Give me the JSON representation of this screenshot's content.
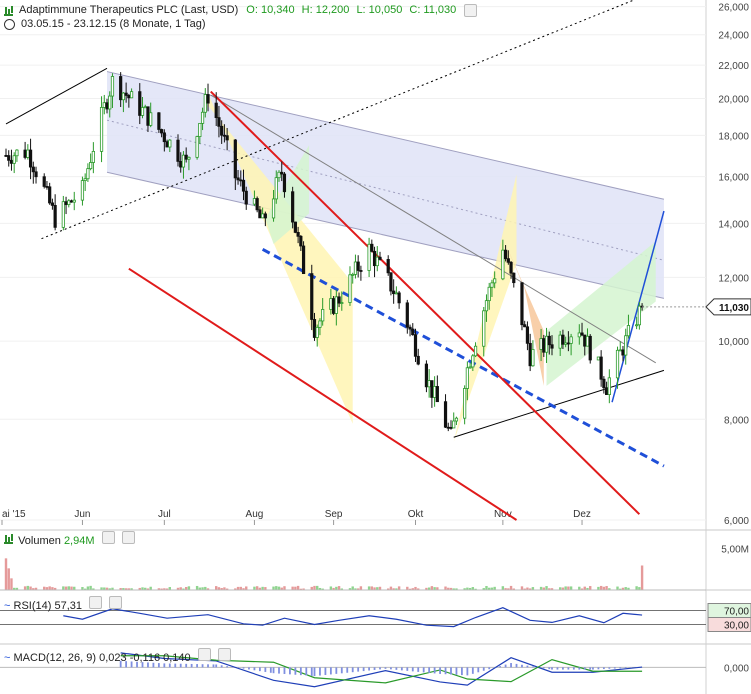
{
  "header": {
    "instrument": "Adaptimmune Therapeutics PLC (Last, USD)",
    "open": "O: 10,340",
    "high": "H: 12,200",
    "low": "L: 10,050",
    "close": "C: 11,030",
    "period": "03.05.15 - 23.12.15 (8 Monate, 1 Tag)"
  },
  "colors": {
    "up": "#2a9a2a",
    "down": "#111111",
    "trend_red": "#e01b1b",
    "trend_blue": "#1f4fd8",
    "channel_fill": "#dfe3f7",
    "yellow_fill": "#fff4b3",
    "green_fill": "#d5f5d0",
    "orange_fill": "#f7c79a"
  },
  "chart_data": {
    "type": "candlestick",
    "x_labels": [
      "ai '15",
      "Jun",
      "Jul",
      "Aug",
      "Sep",
      "Okt",
      "Nov",
      "Dez"
    ],
    "y_ticks": [
      "6,000",
      "8,000",
      "10,000",
      "12,000",
      "14,000",
      "16,000",
      "18,000",
      "20,000",
      "22,000",
      "24,000",
      "26,000"
    ],
    "y_tick_values": [
      6,
      8,
      10,
      12,
      14,
      16,
      18,
      20,
      22,
      24,
      26
    ],
    "ylim": [
      6,
      26.5
    ],
    "last_price_label": "11,030",
    "last_price": 11.03,
    "scale": "log",
    "path_keypoints": [
      {
        "d": "2015-05-04",
        "v": 17.0
      },
      {
        "d": "2015-05-12",
        "v": 17.2
      },
      {
        "d": "2015-05-22",
        "v": 14.2
      },
      {
        "d": "2015-06-01",
        "v": 15.4
      },
      {
        "d": "2015-06-12",
        "v": 21.0
      },
      {
        "d": "2015-06-25",
        "v": 19.0
      },
      {
        "d": "2015-07-09",
        "v": 16.6
      },
      {
        "d": "2015-07-17",
        "v": 20.2
      },
      {
        "d": "2015-07-27",
        "v": 16.0
      },
      {
        "d": "2015-08-06",
        "v": 14.0
      },
      {
        "d": "2015-08-13",
        "v": 16.2
      },
      {
        "d": "2015-08-25",
        "v": 10.4
      },
      {
        "d": "2015-09-04",
        "v": 11.4
      },
      {
        "d": "2015-09-14",
        "v": 13.0
      },
      {
        "d": "2015-09-24",
        "v": 11.4
      },
      {
        "d": "2015-10-05",
        "v": 9.0
      },
      {
        "d": "2015-10-14",
        "v": 7.6
      },
      {
        "d": "2015-10-22",
        "v": 9.8
      },
      {
        "d": "2015-11-02",
        "v": 13.0
      },
      {
        "d": "2015-11-12",
        "v": 9.6
      },
      {
        "d": "2015-11-20",
        "v": 10.0
      },
      {
        "d": "2015-11-30",
        "v": 10.4
      },
      {
        "d": "2015-12-10",
        "v": 8.8
      },
      {
        "d": "2015-12-23",
        "v": 11.03
      }
    ],
    "volume": {
      "label": "Volumen",
      "value": "2,94M",
      "y_tick": "5,00M",
      "y_tick_value": 5.0,
      "ylim": [
        0,
        6.0
      ],
      "last_value": 2.94
    },
    "rsi": {
      "label": "RSI(14)",
      "value": "57,31",
      "levels": [
        "70,00",
        "30,00"
      ],
      "level_values": [
        70,
        30
      ],
      "ylim": [
        0,
        100
      ],
      "keypoints": [
        {
          "d": "2015-05-25",
          "v": 55
        },
        {
          "d": "2015-06-01",
          "v": 45
        },
        {
          "d": "2015-06-12",
          "v": 75
        },
        {
          "d": "2015-06-22",
          "v": 62
        },
        {
          "d": "2015-07-02",
          "v": 48
        },
        {
          "d": "2015-07-17",
          "v": 58
        },
        {
          "d": "2015-07-30",
          "v": 32
        },
        {
          "d": "2015-08-06",
          "v": 28
        },
        {
          "d": "2015-08-14",
          "v": 48
        },
        {
          "d": "2015-08-25",
          "v": 30
        },
        {
          "d": "2015-09-03",
          "v": 42
        },
        {
          "d": "2015-09-14",
          "v": 55
        },
        {
          "d": "2015-09-24",
          "v": 45
        },
        {
          "d": "2015-10-05",
          "v": 28
        },
        {
          "d": "2015-10-15",
          "v": 24
        },
        {
          "d": "2015-10-23",
          "v": 50
        },
        {
          "d": "2015-11-02",
          "v": 78
        },
        {
          "d": "2015-11-12",
          "v": 42
        },
        {
          "d": "2015-11-20",
          "v": 36
        },
        {
          "d": "2015-11-30",
          "v": 55
        },
        {
          "d": "2015-12-09",
          "v": 35
        },
        {
          "d": "2015-12-16",
          "v": 62
        },
        {
          "d": "2015-12-23",
          "v": 57
        }
      ]
    },
    "macd": {
      "label": "MACD(12, 26, 9)",
      "macd_value": "0,023",
      "signal_value": "-0,116",
      "hist_value": "0,140",
      "y_tick": "0,000",
      "y_tick_value": 0,
      "ylim": [
        -1.4,
        1.2
      ],
      "keypoints": [
        {
          "d": "2015-06-15",
          "v": 0.9
        },
        {
          "d": "2015-07-01",
          "v": 0.55
        },
        {
          "d": "2015-07-20",
          "v": 0.4
        },
        {
          "d": "2015-08-10",
          "v": -0.8
        },
        {
          "d": "2015-08-25",
          "v": -1.2
        },
        {
          "d": "2015-09-20",
          "v": -0.2
        },
        {
          "d": "2015-10-10",
          "v": -0.9
        },
        {
          "d": "2015-10-20",
          "v": -1.1
        },
        {
          "d": "2015-11-05",
          "v": 0.6
        },
        {
          "d": "2015-11-20",
          "v": -0.3
        },
        {
          "d": "2015-12-05",
          "v": -0.3
        },
        {
          "d": "2015-12-23",
          "v": 0.02
        }
      ]
    }
  }
}
